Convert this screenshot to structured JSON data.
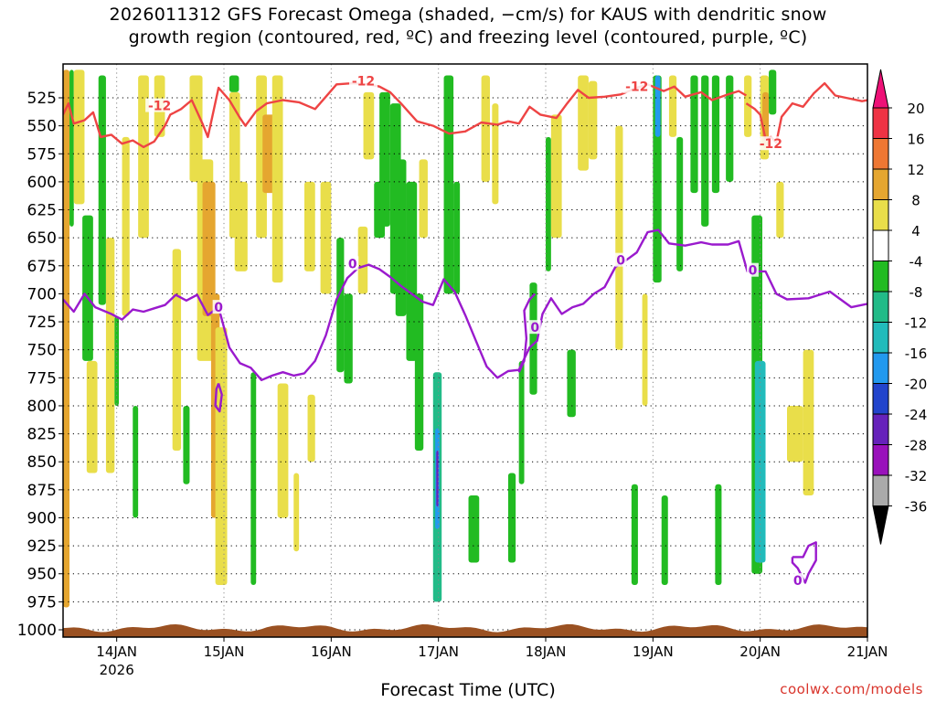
{
  "title": {
    "line1": "2026011312 GFS Forecast Omega (shaded, −cm/s) for KAUS with dendritic snow",
    "line2": "growth region (contoured, red, ºC) and freezing level (contoured, purple, ºC)"
  },
  "credit": "coolwx.com/models",
  "chart_data": {
    "type": "heatmap",
    "xlabel": "Forecast Time (UTC)",
    "x_ticks": [
      {
        "day": 14,
        "label": "14JAN",
        "sub": "2026"
      },
      {
        "day": 15,
        "label": "15JAN",
        "sub": ""
      },
      {
        "day": 16,
        "label": "16JAN",
        "sub": ""
      },
      {
        "day": 17,
        "label": "17JAN",
        "sub": ""
      },
      {
        "day": 18,
        "label": "18JAN",
        "sub": ""
      },
      {
        "day": 19,
        "label": "19JAN",
        "sub": ""
      },
      {
        "day": 20,
        "label": "20JAN",
        "sub": ""
      },
      {
        "day": 21,
        "label": "21JAN",
        "sub": ""
      }
    ],
    "xlim_days": [
      13.5,
      21.0
    ],
    "y_ticks": [
      525,
      550,
      575,
      600,
      625,
      650,
      675,
      700,
      725,
      750,
      775,
      800,
      825,
      850,
      875,
      900,
      925,
      950,
      975,
      1000
    ],
    "ylim_hpa": [
      500,
      1005
    ],
    "colorbar": {
      "labels": [
        "20",
        "16",
        "12",
        "8",
        "4",
        "-4",
        "-8",
        "-12",
        "-16",
        "-20",
        "-24",
        "-28",
        "-32",
        "-36"
      ],
      "levels": [
        20,
        16,
        12,
        8,
        4,
        -4,
        -8,
        -12,
        -16,
        -20,
        -24,
        -28,
        -32,
        -36
      ],
      "colors": [
        "#ee3344",
        "#ee7733",
        "#e5a630",
        "#e9de4a",
        "#ffffff",
        "#22bb22",
        "#22bb88",
        "#22bbbb",
        "#2299ee",
        "#2244cc",
        "#6622bb",
        "#9911bb",
        "#aaaaaa"
      ],
      "top_arrow_color": "#ee1177",
      "bottom_arrow_color": "#000000"
    },
    "dgz_contour": {
      "label": "-12",
      "color": "#ee4444",
      "points": [
        [
          13.5,
          540
        ],
        [
          13.55,
          530
        ],
        [
          13.6,
          548
        ],
        [
          13.7,
          545
        ],
        [
          13.78,
          538
        ],
        [
          13.85,
          560
        ],
        [
          13.95,
          558
        ],
        [
          14.05,
          566
        ],
        [
          14.15,
          563
        ],
        [
          14.25,
          569
        ],
        [
          14.35,
          564
        ],
        [
          14.45,
          550
        ],
        [
          14.5,
          540
        ],
        [
          14.6,
          535
        ],
        [
          14.7,
          527
        ],
        [
          14.8,
          548
        ],
        [
          14.85,
          560
        ],
        [
          14.9,
          538
        ],
        [
          14.95,
          516
        ],
        [
          15.05,
          527
        ],
        [
          15.15,
          543
        ],
        [
          15.2,
          550
        ],
        [
          15.3,
          537
        ],
        [
          15.4,
          530
        ],
        [
          15.55,
          527
        ],
        [
          15.7,
          529
        ],
        [
          15.85,
          535
        ],
        [
          15.95,
          524
        ],
        [
          16.05,
          513
        ],
        [
          16.2,
          512
        ],
        [
          16.35,
          513
        ],
        [
          16.45,
          515
        ],
        [
          16.55,
          520
        ],
        [
          16.65,
          530
        ],
        [
          16.8,
          546
        ],
        [
          16.95,
          550
        ],
        [
          17.1,
          557
        ],
        [
          17.25,
          555
        ],
        [
          17.4,
          547
        ],
        [
          17.55,
          549
        ],
        [
          17.65,
          546
        ],
        [
          17.75,
          548
        ],
        [
          17.85,
          533
        ],
        [
          17.95,
          540
        ],
        [
          18.1,
          543
        ],
        [
          18.2,
          530
        ],
        [
          18.3,
          518
        ],
        [
          18.4,
          525
        ],
        [
          18.55,
          524
        ],
        [
          18.7,
          522
        ],
        [
          18.85,
          516
        ],
        [
          18.95,
          513
        ],
        [
          19.1,
          519
        ],
        [
          19.2,
          515
        ],
        [
          19.3,
          524
        ],
        [
          19.45,
          520
        ],
        [
          19.55,
          527
        ],
        [
          19.7,
          522
        ],
        [
          19.8,
          519
        ],
        [
          19.87,
          523
        ]
      ],
      "island": [
        [
          19.87,
          530
        ],
        [
          19.95,
          535
        ],
        [
          20.0,
          540
        ],
        [
          20.05,
          562
        ],
        [
          20.1,
          560
        ],
        [
          20.15,
          565
        ],
        [
          20.2,
          542
        ],
        [
          20.3,
          530
        ],
        [
          20.4,
          533
        ],
        [
          20.5,
          521
        ],
        [
          20.6,
          512
        ],
        [
          20.7,
          523
        ],
        [
          20.8,
          525
        ],
        [
          20.95,
          528
        ],
        [
          21.0,
          527
        ]
      ],
      "labels": [
        [
          14.4,
          532
        ],
        [
          16.3,
          510
        ],
        [
          18.85,
          515
        ],
        [
          20.1,
          566
        ]
      ]
    },
    "freezing_contour": {
      "label": "0",
      "color": "#9a1acd",
      "points": [
        [
          13.5,
          705
        ],
        [
          13.6,
          716
        ],
        [
          13.7,
          700
        ],
        [
          13.8,
          712
        ],
        [
          13.95,
          718
        ],
        [
          14.05,
          723
        ],
        [
          14.15,
          714
        ],
        [
          14.25,
          716
        ],
        [
          14.35,
          713
        ],
        [
          14.45,
          710
        ],
        [
          14.55,
          701
        ],
        [
          14.65,
          706
        ],
        [
          14.75,
          701
        ],
        [
          14.85,
          719
        ],
        [
          14.95,
          712
        ],
        [
          15.05,
          748
        ],
        [
          15.15,
          762
        ],
        [
          15.25,
          766
        ],
        [
          15.35,
          777
        ],
        [
          15.45,
          773
        ],
        [
          15.55,
          770
        ],
        [
          15.65,
          773
        ],
        [
          15.75,
          771
        ],
        [
          15.85,
          760
        ],
        [
          15.95,
          737
        ],
        [
          16.05,
          705
        ],
        [
          16.15,
          686
        ],
        [
          16.25,
          677
        ],
        [
          16.35,
          674
        ],
        [
          16.45,
          678
        ],
        [
          16.55,
          685
        ],
        [
          16.65,
          693
        ],
        [
          16.75,
          700
        ],
        [
          16.85,
          707
        ],
        [
          16.95,
          710
        ],
        [
          17.05,
          687
        ],
        [
          17.15,
          698
        ],
        [
          17.25,
          719
        ],
        [
          17.35,
          742
        ],
        [
          17.45,
          765
        ],
        [
          17.55,
          775
        ],
        [
          17.65,
          769
        ],
        [
          17.75,
          768
        ],
        [
          17.85,
          748
        ],
        [
          17.92,
          742
        ],
        [
          17.97,
          718
        ],
        [
          18.05,
          704
        ],
        [
          18.15,
          718
        ],
        [
          18.25,
          712
        ],
        [
          18.35,
          709
        ],
        [
          18.45,
          700
        ],
        [
          18.55,
          694
        ],
        [
          18.65,
          676
        ],
        [
          18.75,
          670
        ],
        [
          18.85,
          663
        ],
        [
          18.95,
          645
        ],
        [
          19.05,
          643
        ],
        [
          19.15,
          655
        ],
        [
          19.3,
          657
        ],
        [
          19.45,
          654
        ],
        [
          19.55,
          656
        ],
        [
          19.7,
          656
        ],
        [
          19.8,
          653
        ],
        [
          19.88,
          680
        ],
        [
          19.97,
          680
        ],
        [
          20.05,
          680
        ],
        [
          20.15,
          700
        ],
        [
          20.25,
          705
        ],
        [
          20.45,
          704
        ],
        [
          20.65,
          698
        ],
        [
          20.85,
          712
        ],
        [
          21.0,
          709
        ]
      ],
      "labels": [
        [
          14.95,
          712
        ],
        [
          16.2,
          673
        ],
        [
          17.9,
          730
        ],
        [
          18.7,
          670
        ],
        [
          19.93,
          679
        ],
        [
          20.35,
          956
        ]
      ]
    },
    "terrain_color": "#9a5122",
    "omega_cells": [
      {
        "t0": 13.5,
        "t1": 13.56,
        "p0": 500,
        "p1": 980,
        "v": 10
      },
      {
        "t0": 13.56,
        "t1": 13.6,
        "p0": 500,
        "p1": 640,
        "v": -6
      },
      {
        "t0": 13.6,
        "t1": 13.7,
        "p0": 500,
        "p1": 620,
        "v": 6
      },
      {
        "t0": 13.68,
        "t1": 13.78,
        "p0": 630,
        "p1": 760,
        "v": -6
      },
      {
        "t0": 13.72,
        "t1": 13.82,
        "p0": 760,
        "p1": 860,
        "v": 6
      },
      {
        "t0": 13.83,
        "t1": 13.9,
        "p0": 505,
        "p1": 710,
        "v": -6
      },
      {
        "t0": 13.9,
        "t1": 13.98,
        "p0": 650,
        "p1": 860,
        "v": 6
      },
      {
        "t0": 13.98,
        "t1": 14.02,
        "p0": 720,
        "p1": 800,
        "v": -6
      },
      {
        "t0": 14.05,
        "t1": 14.12,
        "p0": 560,
        "p1": 720,
        "v": 6
      },
      {
        "t0": 14.15,
        "t1": 14.2,
        "p0": 800,
        "p1": 900,
        "v": -6
      },
      {
        "t0": 14.2,
        "t1": 14.3,
        "p0": 505,
        "p1": 650,
        "v": 6
      },
      {
        "t0": 14.35,
        "t1": 14.45,
        "p0": 505,
        "p1": 560,
        "v": 7
      },
      {
        "t0": 14.52,
        "t1": 14.6,
        "p0": 660,
        "p1": 840,
        "v": 6
      },
      {
        "t0": 14.62,
        "t1": 14.68,
        "p0": 800,
        "p1": 870,
        "v": -6
      },
      {
        "t0": 14.68,
        "t1": 14.8,
        "p0": 505,
        "p1": 600,
        "v": 6
      },
      {
        "t0": 14.75,
        "t1": 14.9,
        "p0": 580,
        "p1": 760,
        "v": 6
      },
      {
        "t0": 14.8,
        "t1": 14.92,
        "p0": 600,
        "p1": 720,
        "v": 10
      },
      {
        "t0": 14.88,
        "t1": 14.96,
        "p0": 700,
        "p1": 900,
        "v": 10
      },
      {
        "t0": 14.92,
        "t1": 15.03,
        "p0": 730,
        "p1": 960,
        "v": 6
      },
      {
        "t0": 15.05,
        "t1": 15.14,
        "p0": 505,
        "p1": 520,
        "v": -6
      },
      {
        "t0": 15.05,
        "t1": 15.15,
        "p0": 520,
        "p1": 650,
        "v": 6
      },
      {
        "t0": 15.1,
        "t1": 15.22,
        "p0": 600,
        "p1": 680,
        "v": 6
      },
      {
        "t0": 15.25,
        "t1": 15.3,
        "p0": 770,
        "p1": 960,
        "v": -6
      },
      {
        "t0": 15.3,
        "t1": 15.4,
        "p0": 505,
        "p1": 650,
        "v": 6
      },
      {
        "t0": 15.36,
        "t1": 15.48,
        "p0": 540,
        "p1": 610,
        "v": 10
      },
      {
        "t0": 15.45,
        "t1": 15.55,
        "p0": 505,
        "p1": 690,
        "v": 6
      },
      {
        "t0": 15.5,
        "t1": 15.6,
        "p0": 780,
        "p1": 900,
        "v": 6
      },
      {
        "t0": 15.65,
        "t1": 15.7,
        "p0": 860,
        "p1": 930,
        "v": 6
      },
      {
        "t0": 15.75,
        "t1": 15.85,
        "p0": 600,
        "p1": 680,
        "v": 6
      },
      {
        "t0": 15.78,
        "t1": 15.85,
        "p0": 790,
        "p1": 850,
        "v": 6
      },
      {
        "t0": 15.9,
        "t1": 16.0,
        "p0": 600,
        "p1": 700,
        "v": 6
      },
      {
        "t0": 16.05,
        "t1": 16.12,
        "p0": 650,
        "p1": 770,
        "v": -6
      },
      {
        "t0": 16.12,
        "t1": 16.2,
        "p0": 700,
        "p1": 780,
        "v": -6
      },
      {
        "t0": 16.25,
        "t1": 16.34,
        "p0": 640,
        "p1": 700,
        "v": 6
      },
      {
        "t0": 16.3,
        "t1": 16.4,
        "p0": 520,
        "p1": 580,
        "v": 6
      },
      {
        "t0": 16.4,
        "t1": 16.5,
        "p0": 600,
        "p1": 650,
        "v": -6
      },
      {
        "t0": 16.45,
        "t1": 16.55,
        "p0": 520,
        "p1": 640,
        "v": -6
      },
      {
        "t0": 16.55,
        "t1": 16.65,
        "p0": 530,
        "p1": 700,
        "v": -6
      },
      {
        "t0": 16.6,
        "t1": 16.7,
        "p0": 580,
        "p1": 720,
        "v": -6
      },
      {
        "t0": 16.7,
        "t1": 16.8,
        "p0": 600,
        "p1": 760,
        "v": -6
      },
      {
        "t0": 16.78,
        "t1": 16.86,
        "p0": 700,
        "p1": 840,
        "v": -6
      },
      {
        "t0": 16.82,
        "t1": 16.9,
        "p0": 580,
        "p1": 650,
        "v": 6
      },
      {
        "t0": 16.95,
        "t1": 17.03,
        "p0": 770,
        "p1": 975,
        "v": -8
      },
      {
        "t0": 16.97,
        "t1": 17.01,
        "p0": 820,
        "p1": 910,
        "v": -16
      },
      {
        "t0": 16.98,
        "t1": 17.0,
        "p0": 840,
        "p1": 890,
        "v": -24
      },
      {
        "t0": 17.05,
        "t1": 17.14,
        "p0": 505,
        "p1": 700,
        "v": -6
      },
      {
        "t0": 17.14,
        "t1": 17.2,
        "p0": 600,
        "p1": 700,
        "v": -6
      },
      {
        "t0": 17.28,
        "t1": 17.38,
        "p0": 880,
        "p1": 940,
        "v": -6
      },
      {
        "t0": 17.4,
        "t1": 17.48,
        "p0": 505,
        "p1": 600,
        "v": 6
      },
      {
        "t0": 17.5,
        "t1": 17.56,
        "p0": 530,
        "p1": 620,
        "v": 6
      },
      {
        "t0": 17.65,
        "t1": 17.72,
        "p0": 860,
        "p1": 940,
        "v": -6
      },
      {
        "t0": 17.75,
        "t1": 17.8,
        "p0": 760,
        "p1": 870,
        "v": -6
      },
      {
        "t0": 17.85,
        "t1": 17.92,
        "p0": 690,
        "p1": 790,
        "v": -6
      },
      {
        "t0": 18.0,
        "t1": 18.05,
        "p0": 560,
        "p1": 680,
        "v": -6
      },
      {
        "t0": 18.05,
        "t1": 18.15,
        "p0": 540,
        "p1": 650,
        "v": 6
      },
      {
        "t0": 18.2,
        "t1": 18.28,
        "p0": 750,
        "p1": 810,
        "v": -6
      },
      {
        "t0": 18.3,
        "t1": 18.4,
        "p0": 505,
        "p1": 590,
        "v": 6
      },
      {
        "t0": 18.4,
        "t1": 18.48,
        "p0": 510,
        "p1": 580,
        "v": 6
      },
      {
        "t0": 18.65,
        "t1": 18.72,
        "p0": 550,
        "p1": 750,
        "v": 6
      },
      {
        "t0": 18.8,
        "t1": 18.86,
        "p0": 870,
        "p1": 960,
        "v": -6
      },
      {
        "t0": 18.9,
        "t1": 18.95,
        "p0": 700,
        "p1": 800,
        "v": 6
      },
      {
        "t0": 19.0,
        "t1": 19.08,
        "p0": 505,
        "p1": 690,
        "v": -6
      },
      {
        "t0": 19.02,
        "t1": 19.07,
        "p0": 505,
        "p1": 560,
        "v": -16
      },
      {
        "t0": 19.08,
        "t1": 19.14,
        "p0": 880,
        "p1": 960,
        "v": -6
      },
      {
        "t0": 19.15,
        "t1": 19.22,
        "p0": 505,
        "p1": 560,
        "v": 6
      },
      {
        "t0": 19.22,
        "t1": 19.28,
        "p0": 560,
        "p1": 680,
        "v": -6
      },
      {
        "t0": 19.35,
        "t1": 19.42,
        "p0": 505,
        "p1": 610,
        "v": -6
      },
      {
        "t0": 19.45,
        "t1": 19.52,
        "p0": 505,
        "p1": 640,
        "v": -6
      },
      {
        "t0": 19.55,
        "t1": 19.62,
        "p0": 505,
        "p1": 610,
        "v": -6
      },
      {
        "t0": 19.58,
        "t1": 19.64,
        "p0": 870,
        "p1": 960,
        "v": -6
      },
      {
        "t0": 19.68,
        "t1": 19.75,
        "p0": 505,
        "p1": 600,
        "v": -6
      },
      {
        "t0": 19.85,
        "t1": 19.92,
        "p0": 505,
        "p1": 560,
        "v": 6
      },
      {
        "t0": 19.92,
        "t1": 20.02,
        "p0": 630,
        "p1": 950,
        "v": -6
      },
      {
        "t0": 19.95,
        "t1": 20.05,
        "p0": 760,
        "p1": 940,
        "v": -12
      },
      {
        "t0": 20.0,
        "t1": 20.08,
        "p0": 505,
        "p1": 580,
        "v": 6
      },
      {
        "t0": 20.02,
        "t1": 20.08,
        "p0": 520,
        "p1": 570,
        "v": 10
      },
      {
        "t0": 20.08,
        "t1": 20.15,
        "p0": 500,
        "p1": 540,
        "v": -6
      },
      {
        "t0": 20.15,
        "t1": 20.22,
        "p0": 600,
        "p1": 650,
        "v": 6
      },
      {
        "t0": 20.25,
        "t1": 20.4,
        "p0": 800,
        "p1": 850,
        "v": 6
      },
      {
        "t0": 20.4,
        "t1": 20.5,
        "p0": 750,
        "p1": 880,
        "v": 6
      }
    ]
  }
}
